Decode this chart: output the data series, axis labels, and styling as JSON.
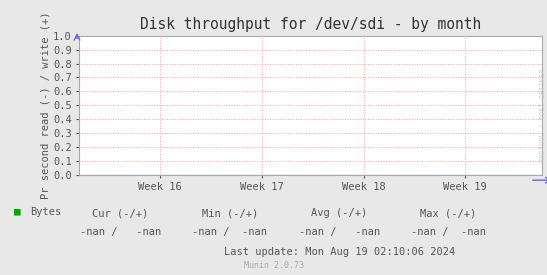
{
  "title": "Disk throughput for /dev/sdi - by month",
  "ylabel": "Pr second read (-) / write (+)",
  "ylim": [
    0.0,
    1.0
  ],
  "yticks": [
    0.0,
    0.1,
    0.2,
    0.3,
    0.4,
    0.5,
    0.6,
    0.7,
    0.8,
    0.9,
    1.0
  ],
  "xtick_labels": [
    "Week 16",
    "Week 17",
    "Week 18",
    "Week 19"
  ],
  "xtick_positions": [
    0.175,
    0.395,
    0.615,
    0.835
  ],
  "bg_color": "#e8e8e8",
  "plot_bg_color": "#ffffff",
  "grid_color": "#ff9999",
  "axis_color": "#aaaaaa",
  "title_color": "#333333",
  "tick_color": "#555555",
  "legend_label": "Bytes",
  "legend_color": "#00aa00",
  "cur_label": "Cur (-/+)",
  "cur_val": "-nan /    -nan",
  "min_label": "Min (-/+)",
  "min_val": "-nan /   -nan",
  "avg_label": "Avg (-/+)",
  "avg_val": "-nan /    -nan",
  "max_label": "Max (-/+)",
  "max_val": "-nan /   -nan",
  "last_update": "Last update: Mon Aug 19 02:10:06 2024",
  "watermark": "RRDTOOL / TOBI OETIKER",
  "munin_version": "Munin 2.0.73",
  "arrow_color": "#6666cc",
  "line_color": "#0000dd",
  "font_size": 7.5,
  "title_font_size": 10.5
}
